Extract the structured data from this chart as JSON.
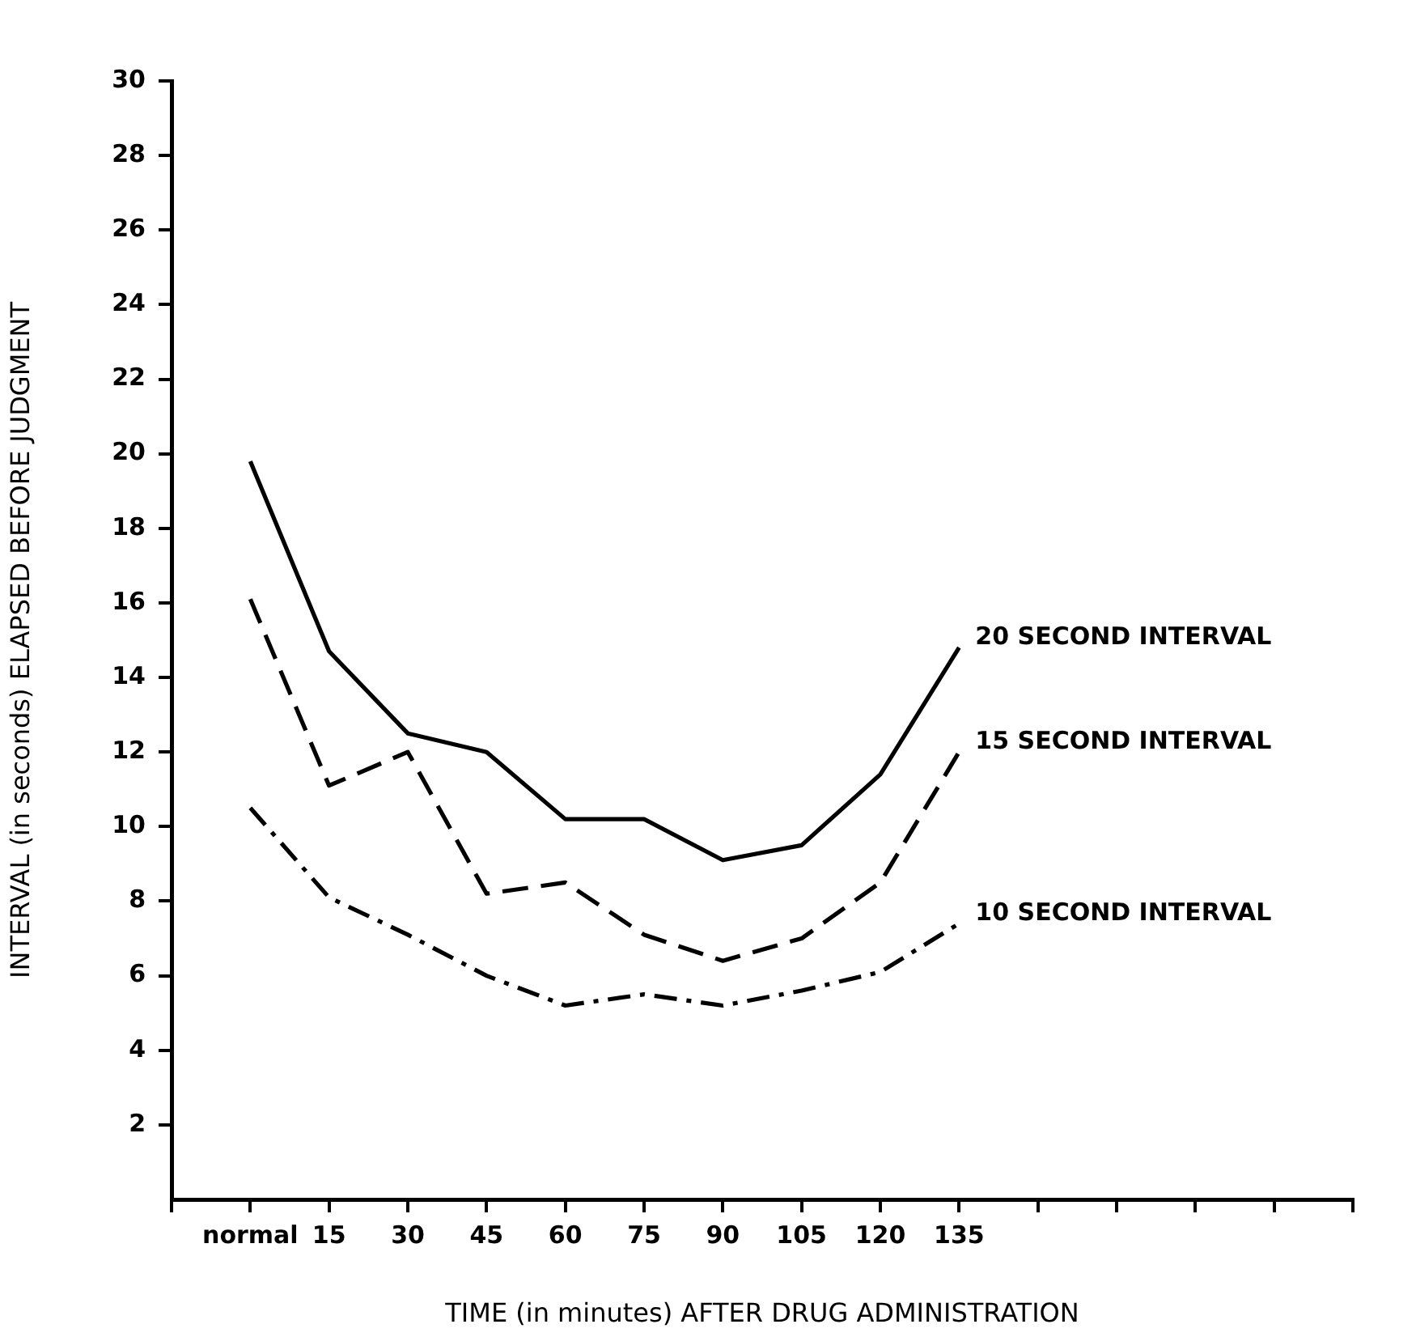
{
  "chart_data": {
    "type": "line",
    "xlabel": "TIME (in minutes) AFTER DRUG ADMINISTRATION",
    "ylabel": "INTERVAL (in seconds) ELAPSED BEFORE JUDGMENT",
    "categories": [
      null,
      "normal",
      "15",
      "30",
      "45",
      "60",
      "75",
      "90",
      "105",
      "120",
      "135",
      null,
      null,
      null,
      null,
      null
    ],
    "ylim": [
      0,
      30
    ],
    "yticks": [
      2,
      4,
      6,
      8,
      10,
      12,
      14,
      16,
      18,
      20,
      22,
      24,
      26,
      28,
      30
    ],
    "grid": false,
    "legend": false,
    "marker": "none",
    "series": [
      {
        "name": "20 SECOND INTERVAL",
        "color": "#000000",
        "line_style": "solid",
        "values": [
          null,
          19.8,
          14.7,
          12.5,
          12.0,
          10.2,
          10.2,
          9.1,
          9.5,
          11.4,
          14.8,
          null,
          null,
          null,
          null,
          null
        ]
      },
      {
        "name": "15 SECOND INTERVAL",
        "color": "#000000",
        "line_style": "dashed",
        "values": [
          null,
          16.1,
          11.1,
          12.0,
          8.2,
          8.5,
          7.1,
          6.4,
          7.0,
          8.5,
          12.0,
          null,
          null,
          null,
          null,
          null
        ]
      },
      {
        "name": "10 SECOND INTERVAL",
        "color": "#000000",
        "line_style": "dashdot",
        "values": [
          null,
          10.5,
          8.1,
          7.1,
          6.0,
          5.2,
          5.5,
          5.2,
          5.6,
          6.1,
          7.4,
          null,
          null,
          null,
          null,
          null
        ]
      }
    ]
  }
}
